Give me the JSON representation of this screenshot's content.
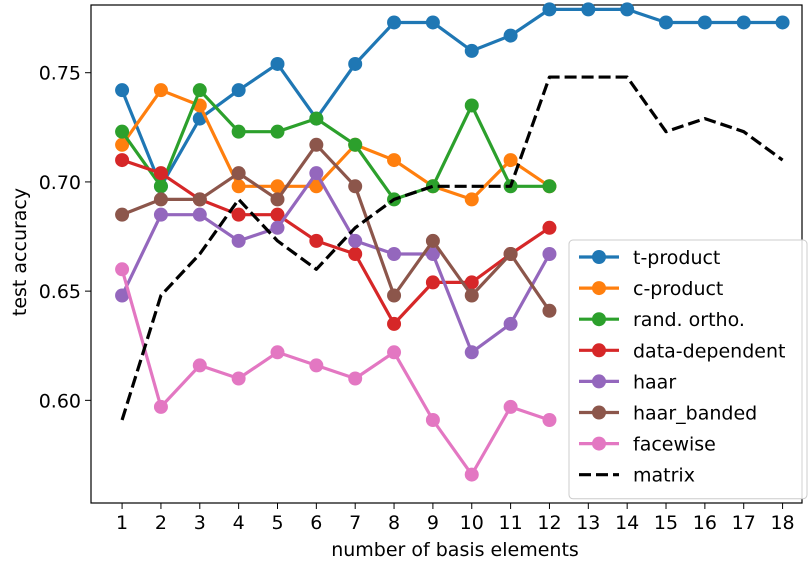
{
  "chart_data": {
    "type": "line",
    "xlabel": "number of basis elements",
    "ylabel": "test accuracy",
    "x_ticks": [
      1,
      2,
      3,
      4,
      5,
      6,
      7,
      8,
      9,
      10,
      11,
      12,
      13,
      14,
      15,
      16,
      17,
      18
    ],
    "y_ticks": [
      0.6,
      0.65,
      0.7,
      0.75
    ],
    "xlim": [
      0.2,
      18.5
    ],
    "ylim": [
      0.553,
      0.781
    ],
    "grid": false,
    "legend_position": "lower-right",
    "series": [
      {
        "name": "t-product",
        "color": "#1f77b4",
        "marker": "circle",
        "dash": "solid",
        "x": [
          1,
          2,
          3,
          4,
          5,
          6,
          7,
          8,
          9,
          10,
          11,
          12,
          13,
          14,
          15,
          16,
          17,
          18
        ],
        "y": [
          0.742,
          0.698,
          0.729,
          0.742,
          0.754,
          0.729,
          0.754,
          0.773,
          0.773,
          0.76,
          0.767,
          0.779,
          0.779,
          0.779,
          0.773,
          0.773,
          0.773,
          0.773
        ]
      },
      {
        "name": "c-product",
        "color": "#ff7f0e",
        "marker": "circle",
        "dash": "solid",
        "x": [
          1,
          2,
          3,
          4,
          5,
          6,
          7,
          8,
          9,
          10,
          11,
          12
        ],
        "y": [
          0.717,
          0.742,
          0.735,
          0.698,
          0.698,
          0.698,
          0.717,
          0.71,
          0.698,
          0.692,
          0.71,
          0.698
        ]
      },
      {
        "name": "rand. ortho.",
        "color": "#2ca02c",
        "marker": "circle",
        "dash": "solid",
        "x": [
          1,
          2,
          3,
          4,
          5,
          6,
          7,
          8,
          9,
          10,
          11,
          12
        ],
        "y": [
          0.723,
          0.698,
          0.742,
          0.723,
          0.723,
          0.729,
          0.717,
          0.692,
          0.698,
          0.735,
          0.698,
          0.698
        ]
      },
      {
        "name": "data-dependent",
        "color": "#d62728",
        "marker": "circle",
        "dash": "solid",
        "x": [
          1,
          2,
          3,
          4,
          5,
          6,
          7,
          8,
          9,
          10,
          11,
          12
        ],
        "y": [
          0.71,
          0.704,
          0.692,
          0.685,
          0.685,
          0.673,
          0.667,
          0.635,
          0.654,
          0.654,
          0.667,
          0.679
        ]
      },
      {
        "name": "haar",
        "color": "#9467bd",
        "marker": "circle",
        "dash": "solid",
        "x": [
          1,
          2,
          3,
          4,
          5,
          6,
          7,
          8,
          9,
          10,
          11,
          12
        ],
        "y": [
          0.648,
          0.685,
          0.685,
          0.673,
          0.679,
          0.704,
          0.673,
          0.667,
          0.667,
          0.622,
          0.635,
          0.667
        ]
      },
      {
        "name": "haar_banded",
        "color": "#8c564b",
        "marker": "circle",
        "dash": "solid",
        "x": [
          1,
          2,
          3,
          4,
          5,
          6,
          7,
          8,
          9,
          10,
          11,
          12
        ],
        "y": [
          0.685,
          0.692,
          0.692,
          0.704,
          0.692,
          0.717,
          0.698,
          0.648,
          0.673,
          0.648,
          0.667,
          0.641
        ]
      },
      {
        "name": "facewise",
        "color": "#e377c2",
        "marker": "circle",
        "dash": "solid",
        "x": [
          1,
          2,
          3,
          4,
          5,
          6,
          7,
          8,
          9,
          10,
          11,
          12
        ],
        "y": [
          0.66,
          0.597,
          0.616,
          0.61,
          0.622,
          0.616,
          0.61,
          0.622,
          0.591,
          0.566,
          0.597,
          0.591
        ]
      },
      {
        "name": "matrix",
        "color": "#000000",
        "marker": "none",
        "dash": "dashed",
        "x": [
          1,
          2,
          3,
          4,
          5,
          6,
          7,
          8,
          9,
          10,
          11,
          12,
          13,
          14,
          15,
          16,
          17,
          18
        ],
        "y": [
          0.591,
          0.648,
          0.667,
          0.692,
          0.673,
          0.66,
          0.679,
          0.692,
          0.698,
          0.698,
          0.698,
          0.748,
          0.748,
          0.748,
          0.723,
          0.729,
          0.723,
          0.71
        ]
      }
    ]
  }
}
